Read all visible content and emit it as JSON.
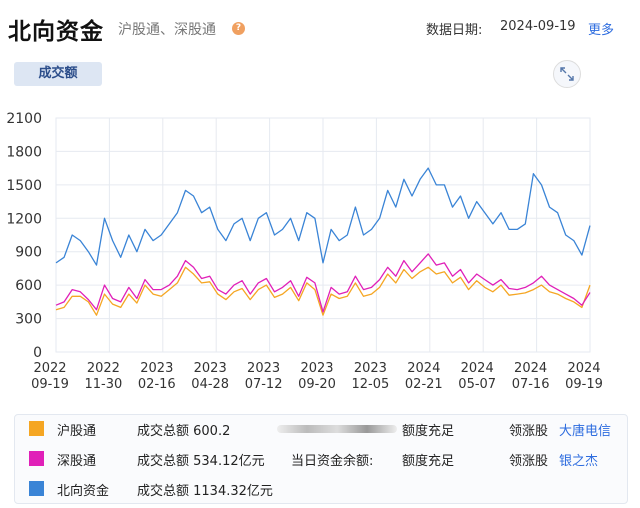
{
  "header": {
    "title": "北向资金",
    "subtitle": "沪股通、深股通",
    "help_icon": "question-icon",
    "date_label": "数据日期:",
    "date_value": "2024-09-19",
    "more_label": "更多"
  },
  "tab": {
    "label": "成交额"
  },
  "expand_icon": "expand-icon",
  "colors": {
    "sh": "#f5a623",
    "sz": "#e020b8",
    "north": "#3a84d6",
    "grid": "#e6eaf0"
  },
  "chart_data": {
    "type": "line",
    "ylim": [
      0,
      2100
    ],
    "yticks": [
      "0",
      "300",
      "600",
      "900",
      "1200",
      "1500",
      "1800",
      "2100"
    ],
    "xticks": [
      {
        "year": "2022",
        "date": "09-19"
      },
      {
        "year": "2022",
        "date": "11-30"
      },
      {
        "year": "2023",
        "date": "02-16"
      },
      {
        "year": "2023",
        "date": "04-28"
      },
      {
        "year": "2023",
        "date": "07-12"
      },
      {
        "year": "2023",
        "date": "09-20"
      },
      {
        "year": "2023",
        "date": "12-05"
      },
      {
        "year": "2024",
        "date": "02-21"
      },
      {
        "year": "2024",
        "date": "05-07"
      },
      {
        "year": "2024",
        "date": "07-16"
      },
      {
        "year": "2024",
        "date": "09-19"
      }
    ],
    "series": [
      {
        "name": "北向资金",
        "color": "#3a84d6",
        "values": [
          800,
          850,
          1050,
          1000,
          900,
          780,
          1200,
          1000,
          850,
          1050,
          900,
          1100,
          1000,
          1050,
          1150,
          1250,
          1450,
          1400,
          1250,
          1300,
          1100,
          1000,
          1150,
          1200,
          1000,
          1200,
          1250,
          1050,
          1100,
          1200,
          1000,
          1250,
          1200,
          800,
          1100,
          1000,
          1050,
          1300,
          1050,
          1100,
          1200,
          1450,
          1300,
          1550,
          1400,
          1550,
          1650,
          1500,
          1500,
          1300,
          1400,
          1200,
          1350,
          1250,
          1150,
          1250,
          1100,
          1100,
          1150,
          1600,
          1500,
          1300,
          1250,
          1050,
          1000,
          870,
          1134
        ]
      },
      {
        "name": "沪股通",
        "color": "#f5a623",
        "values": [
          380,
          400,
          500,
          500,
          450,
          330,
          520,
          430,
          400,
          520,
          440,
          600,
          520,
          500,
          560,
          620,
          760,
          700,
          620,
          630,
          520,
          470,
          540,
          570,
          470,
          560,
          600,
          490,
          520,
          580,
          460,
          620,
          560,
          330,
          520,
          480,
          500,
          620,
          500,
          520,
          580,
          700,
          620,
          740,
          660,
          720,
          760,
          700,
          720,
          620,
          670,
          560,
          640,
          580,
          540,
          600,
          510,
          520,
          530,
          560,
          600,
          540,
          520,
          480,
          450,
          400,
          600
        ]
      },
      {
        "name": "深股通",
        "color": "#e020b8",
        "values": [
          420,
          450,
          560,
          540,
          470,
          380,
          600,
          480,
          450,
          580,
          480,
          650,
          560,
          560,
          600,
          680,
          820,
          760,
          660,
          680,
          560,
          520,
          600,
          640,
          520,
          620,
          660,
          540,
          580,
          640,
          500,
          670,
          620,
          360,
          580,
          520,
          540,
          680,
          560,
          580,
          650,
          760,
          680,
          820,
          720,
          800,
          880,
          780,
          800,
          680,
          740,
          620,
          700,
          650,
          600,
          650,
          570,
          560,
          580,
          620,
          680,
          600,
          560,
          520,
          480,
          420,
          534
        ]
      }
    ]
  },
  "legend": [
    {
      "name": "沪股通",
      "volume": "成交总额 600.2",
      "extra": "",
      "quota": "额度充足",
      "lead_label": "领涨股",
      "lead_stock": "大唐电信",
      "color": "#f5a623"
    },
    {
      "name": "深股通",
      "volume": "成交总额 534.12亿元",
      "extra": "当日资金余额:",
      "quota": "额度充足",
      "lead_label": "领涨股",
      "lead_stock": "银之杰",
      "color": "#e020b8"
    },
    {
      "name": "北向资金",
      "volume": "成交总额 1134.32亿元",
      "extra": "",
      "quota": "",
      "lead_label": "",
      "lead_stock": "",
      "color": "#3a84d6"
    }
  ]
}
